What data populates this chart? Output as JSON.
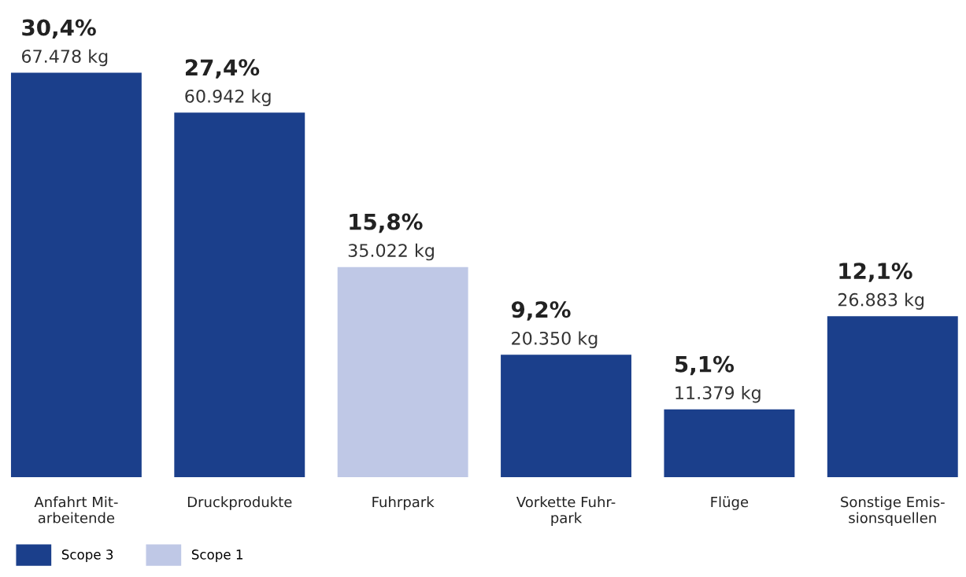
{
  "chart_data": {
    "type": "bar",
    "categories": [
      "Anfahrt Mit-\narbeitende",
      "Druckprodukte",
      "Fuhrpark",
      "Vorkette Fuhr-\npark",
      "Flüge",
      "Sonstige Emis-\nsionsquellen"
    ],
    "series": [
      {
        "name": "Scope 3",
        "color": "#1b3f8b",
        "values": [
          30.4,
          27.4,
          null,
          9.2,
          5.1,
          12.1
        ],
        "value_labels": [
          "30,4%\n67.478 kg",
          "27,4%\n60.942 kg",
          null,
          "9,2%\n20.350 kg",
          "5,1%\n11.379 kg",
          "12,1%\n26.883 kg"
        ]
      },
      {
        "name": "Scope 1",
        "color": "#bfc8e6",
        "values": [
          null,
          null,
          15.8,
          null,
          null,
          null
        ],
        "value_labels": [
          null,
          null,
          "15,8%\n35.022 kg",
          null,
          null,
          null
        ]
      }
    ],
    "legend": "bottom left",
    "grid": false
  }
}
